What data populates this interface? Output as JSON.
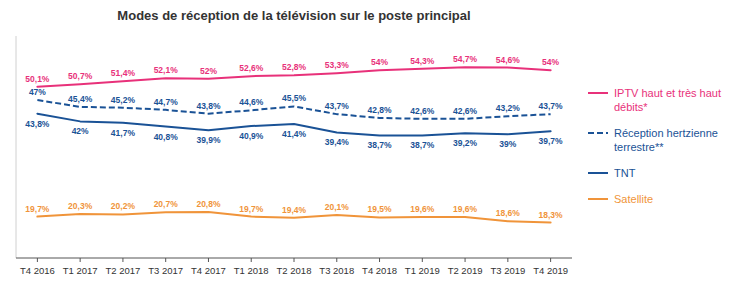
{
  "chart_data": {
    "type": "line",
    "title": "Modes de réception de la télévision sur le poste principal",
    "categories": [
      "T4 2016",
      "T1 2017",
      "T2 2017",
      "T3 2017",
      "T4 2017",
      "T1 2018",
      "T2 2018",
      "T3 2018",
      "T4 2018",
      "T1 2019",
      "T2 2019",
      "T3 2019",
      "T4 2019"
    ],
    "series": [
      {
        "name": "IPTV haut et très haut débits*",
        "color": "#e8317a",
        "line_style": "solid",
        "values": [
          50.1,
          50.7,
          51.4,
          52.1,
          52.0,
          52.6,
          52.8,
          53.3,
          54.0,
          54.3,
          54.7,
          54.6,
          54.0
        ],
        "value_labels": [
          "50,1%",
          "50,7%",
          "51,4%",
          "52,1%",
          "52%",
          "52,6%",
          "52,8%",
          "53,3%",
          "54%",
          "54,3%",
          "54,7%",
          "54,6%",
          "54%"
        ]
      },
      {
        "name": "Réception hertzienne terrestre**",
        "color": "#1a5296",
        "line_style": "dashed",
        "values": [
          47.0,
          45.4,
          45.2,
          44.7,
          43.8,
          44.6,
          45.5,
          43.7,
          42.8,
          42.6,
          42.6,
          43.2,
          43.7
        ],
        "value_labels": [
          "47%",
          "45,4%",
          "45,2%",
          "44,7%",
          "43,8%",
          "44,6%",
          "45,5%",
          "43,7%",
          "42,8%",
          "42,6%",
          "42,6%",
          "43,2%",
          "43,7%"
        ]
      },
      {
        "name": "TNT",
        "color": "#1a5296",
        "line_style": "solid",
        "values": [
          43.8,
          42.0,
          41.7,
          40.8,
          39.9,
          40.9,
          41.4,
          39.4,
          38.7,
          38.7,
          39.2,
          39.0,
          39.7
        ],
        "value_labels": [
          "43,8%",
          "42%",
          "41,7%",
          "40,8%",
          "39,9%",
          "40,9%",
          "41,4%",
          "39,4%",
          "38,7%",
          "38,7%",
          "39,2%",
          "39%",
          "39,7%"
        ]
      },
      {
        "name": "Satellite",
        "color": "#f0943a",
        "line_style": "solid",
        "values": [
          19.7,
          20.3,
          20.2,
          20.7,
          20.8,
          19.7,
          19.4,
          20.1,
          19.5,
          19.6,
          19.6,
          18.6,
          18.3
        ],
        "value_labels": [
          "19,7%",
          "20,3%",
          "20,2%",
          "20,7%",
          "20,8%",
          "19,7%",
          "19,4%",
          "20,1%",
          "19,5%",
          "19,6%",
          "19,6%",
          "18,6%",
          "18,3%"
        ]
      }
    ],
    "ylim": [
      10,
      62
    ],
    "tick_labels": "x",
    "data_labels": true,
    "legend": "right",
    "grid": false
  }
}
